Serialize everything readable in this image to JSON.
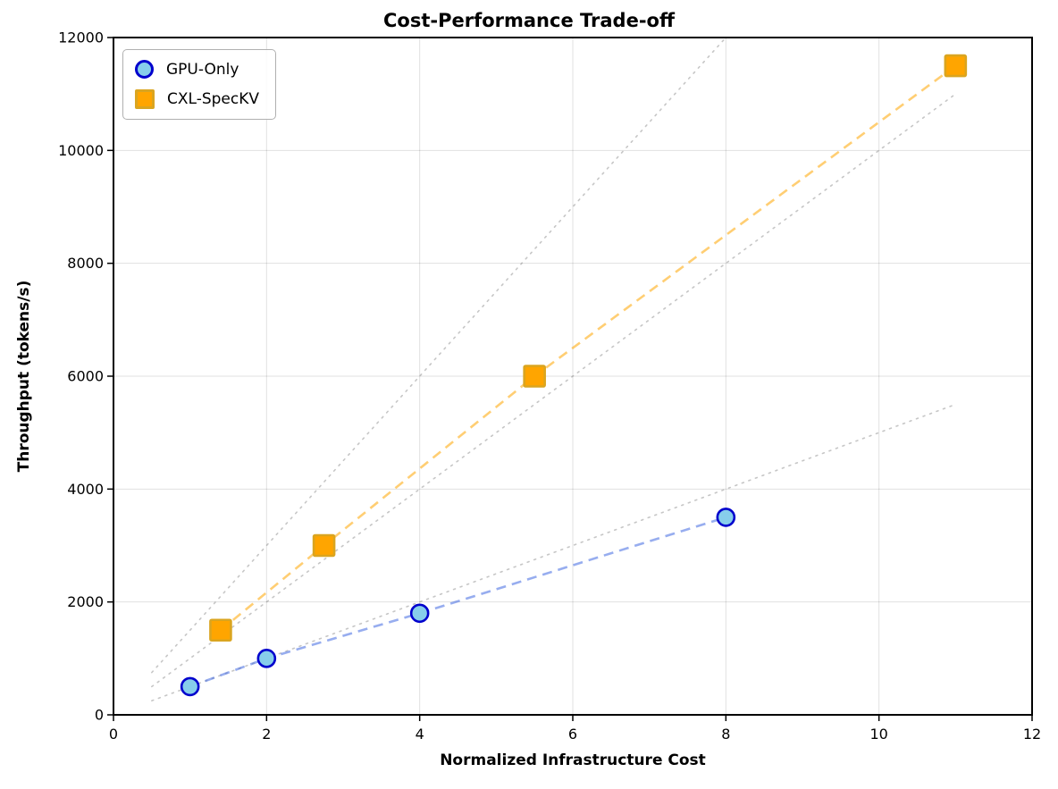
{
  "chart_data": {
    "type": "scatter",
    "title": "Cost-Performance Trade-off",
    "xlabel": "Normalized Infrastructure Cost",
    "ylabel": "Throughput (tokens/s)",
    "xlim": [
      0,
      12
    ],
    "ylim": [
      0,
      12000
    ],
    "xticks": [
      0,
      2,
      4,
      6,
      8,
      10,
      12
    ],
    "yticks": [
      0,
      2000,
      4000,
      6000,
      8000,
      10000,
      12000
    ],
    "grid": true,
    "legend_position": "upper left",
    "series": [
      {
        "name": "GPU-Only",
        "marker": "circle",
        "x": [
          1,
          2,
          4,
          8
        ],
        "y": [
          500,
          1000,
          1800,
          3500
        ],
        "marker_fill": "#87CEEB",
        "marker_edge": "#0000CD",
        "line_color": "rgba(65,105,225,0.55)",
        "line_style": "dashed"
      },
      {
        "name": "CXL-SpecKV",
        "marker": "square",
        "x": [
          1.4,
          2.75,
          5.5,
          11
        ],
        "y": [
          1500,
          3000,
          6000,
          11500
        ],
        "marker_fill": "#FFA500",
        "marker_edge": "#DAA520",
        "line_color": "rgba(255,165,0,0.55)",
        "line_style": "dashed"
      }
    ],
    "reference_lines": {
      "slopes": [
        500,
        1000,
        1500
      ],
      "x_range": [
        0.5,
        11
      ],
      "color": "rgba(128,128,128,0.45)",
      "style": "dotted"
    },
    "colors": {
      "grid": "rgba(0,0,0,0.12)",
      "spine": "#000000",
      "background": "#ffffff"
    }
  }
}
